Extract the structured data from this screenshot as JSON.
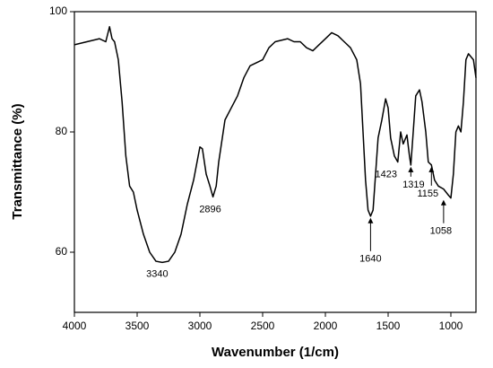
{
  "chart_data": {
    "type": "line",
    "xlabel": "Wavenumber (1/cm)",
    "ylabel": "Transmittance (%)",
    "xlim": [
      4000,
      800
    ],
    "ylim": [
      50,
      100
    ],
    "xticks": [
      4000,
      3500,
      3000,
      2500,
      2000,
      1500,
      1000
    ],
    "yticks": [
      60,
      80,
      100
    ],
    "grid": false,
    "series": [
      {
        "color": "#000000",
        "x": [
          4000,
          3900,
          3800,
          3750,
          3720,
          3700,
          3680,
          3650,
          3620,
          3590,
          3560,
          3530,
          3500,
          3450,
          3400,
          3350,
          3300,
          3250,
          3200,
          3150,
          3100,
          3050,
          3000,
          2980,
          2950,
          2920,
          2896,
          2870,
          2850,
          2800,
          2750,
          2700,
          2650,
          2600,
          2550,
          2500,
          2450,
          2400,
          2300,
          2250,
          2200,
          2150,
          2100,
          2050,
          2000,
          1950,
          1900,
          1850,
          1800,
          1750,
          1720,
          1700,
          1680,
          1660,
          1640,
          1620,
          1600,
          1580,
          1550,
          1520,
          1500,
          1480,
          1450,
          1423,
          1400,
          1380,
          1350,
          1330,
          1319,
          1300,
          1280,
          1250,
          1230,
          1200,
          1180,
          1155,
          1130,
          1100,
          1058,
          1020,
          1000,
          980,
          960,
          940,
          920,
          900,
          880,
          860,
          840,
          820,
          800
        ],
        "values": [
          94.5,
          95,
          95.5,
          95,
          97.5,
          95.5,
          95,
          92,
          85,
          76,
          71,
          70,
          67,
          63,
          60,
          58.5,
          58.3,
          58.5,
          60,
          63,
          68,
          72,
          77.5,
          77.2,
          73,
          71,
          69.2,
          71,
          75,
          82,
          84,
          86,
          89,
          91,
          91.5,
          92,
          94,
          95,
          95.5,
          95,
          95,
          94,
          93.5,
          94.5,
          95.5,
          96.5,
          96,
          95,
          94,
          92,
          88,
          80,
          72,
          67,
          66,
          67,
          73,
          79,
          82,
          85.5,
          84,
          79,
          76,
          75,
          80,
          78,
          79.5,
          76,
          74.5,
          80,
          86,
          87,
          85,
          80,
          75,
          74.5,
          72,
          71,
          70.5,
          69.5,
          69,
          73,
          80,
          81,
          80,
          85,
          92,
          93,
          92.5,
          92,
          89
        ]
      }
    ],
    "annotations": [
      {
        "label": "3340",
        "x": 3340,
        "y": 58.3,
        "arrow": false
      },
      {
        "label": "2896",
        "x": 2896,
        "y": 69.2,
        "arrow": false
      },
      {
        "label": "1640",
        "x": 1640,
        "y": 66,
        "arrow": true
      },
      {
        "label": "1423",
        "x": 1423,
        "y": 75,
        "arrow": false
      },
      {
        "label": "1319",
        "x": 1319,
        "y": 74.5,
        "arrow": true
      },
      {
        "label": "1155",
        "x": 1155,
        "y": 74.5,
        "arrow": true
      },
      {
        "label": "1058",
        "x": 1058,
        "y": 69,
        "arrow": true
      }
    ]
  }
}
